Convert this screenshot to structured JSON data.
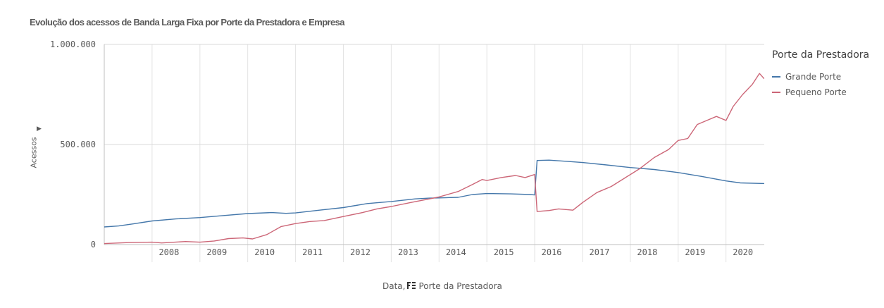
{
  "chart_data": {
    "type": "line",
    "title": "Evolução dos acessos de Banda Larga Fixa por Porte da Prestadora e Empresa",
    "xlabel_prefix": "Data,",
    "xlabel_dimension": "Porte da Prestadora",
    "ylabel": "Acessos",
    "ylim": [
      0,
      1000000
    ],
    "y_ticks": [
      {
        "value": 0,
        "label": "0"
      },
      {
        "value": 500000,
        "label": "500.000"
      },
      {
        "value": 1000000,
        "label": "1.000.000"
      }
    ],
    "xlim": [
      2007.0,
      2020.8
    ],
    "x_ticks": [
      {
        "value": 2008,
        "label": "2008"
      },
      {
        "value": 2009,
        "label": "2009"
      },
      {
        "value": 2010,
        "label": "2010"
      },
      {
        "value": 2011,
        "label": "2011"
      },
      {
        "value": 2012,
        "label": "2012"
      },
      {
        "value": 2013,
        "label": "2013"
      },
      {
        "value": 2014,
        "label": "2014"
      },
      {
        "value": 2015,
        "label": "2015"
      },
      {
        "value": 2016,
        "label": "2016"
      },
      {
        "value": 2017,
        "label": "2017"
      },
      {
        "value": 2018,
        "label": "2018"
      },
      {
        "value": 2019,
        "label": "2019"
      },
      {
        "value": 2020,
        "label": "2020"
      }
    ],
    "legend_title": "Porte da Prestadora",
    "series": [
      {
        "name": "Grande Porte",
        "color": "#4477aa",
        "points": [
          [
            2007.0,
            88000
          ],
          [
            2007.3,
            93000
          ],
          [
            2007.6,
            103000
          ],
          [
            2008.0,
            118000
          ],
          [
            2008.5,
            128000
          ],
          [
            2009.0,
            135000
          ],
          [
            2009.5,
            145000
          ],
          [
            2010.0,
            155000
          ],
          [
            2010.5,
            160000
          ],
          [
            2010.8,
            156000
          ],
          [
            2011.0,
            158000
          ],
          [
            2011.5,
            172000
          ],
          [
            2012.0,
            185000
          ],
          [
            2012.5,
            205000
          ],
          [
            2013.0,
            215000
          ],
          [
            2013.5,
            228000
          ],
          [
            2013.8,
            232000
          ],
          [
            2014.0,
            233000
          ],
          [
            2014.4,
            236000
          ],
          [
            2014.7,
            250000
          ],
          [
            2015.0,
            255000
          ],
          [
            2015.5,
            253000
          ],
          [
            2015.9,
            250000
          ],
          [
            2016.0,
            248000
          ],
          [
            2016.05,
            420000
          ],
          [
            2016.3,
            422000
          ],
          [
            2016.7,
            415000
          ],
          [
            2017.0,
            410000
          ],
          [
            2017.5,
            398000
          ],
          [
            2018.0,
            385000
          ],
          [
            2018.5,
            375000
          ],
          [
            2019.0,
            360000
          ],
          [
            2019.5,
            340000
          ],
          [
            2020.0,
            318000
          ],
          [
            2020.3,
            308000
          ],
          [
            2020.8,
            305000
          ]
        ]
      },
      {
        "name": "Pequeno Porte",
        "color": "#cc6677",
        "points": [
          [
            2007.0,
            5000
          ],
          [
            2007.5,
            10000
          ],
          [
            2008.0,
            12000
          ],
          [
            2008.2,
            8000
          ],
          [
            2008.7,
            15000
          ],
          [
            2009.0,
            12000
          ],
          [
            2009.3,
            18000
          ],
          [
            2009.6,
            30000
          ],
          [
            2009.9,
            33000
          ],
          [
            2010.1,
            28000
          ],
          [
            2010.4,
            50000
          ],
          [
            2010.7,
            90000
          ],
          [
            2011.0,
            105000
          ],
          [
            2011.3,
            115000
          ],
          [
            2011.6,
            120000
          ],
          [
            2012.0,
            140000
          ],
          [
            2012.4,
            160000
          ],
          [
            2012.7,
            178000
          ],
          [
            2013.0,
            190000
          ],
          [
            2013.4,
            210000
          ],
          [
            2013.8,
            228000
          ],
          [
            2014.0,
            238000
          ],
          [
            2014.4,
            265000
          ],
          [
            2014.7,
            300000
          ],
          [
            2014.9,
            325000
          ],
          [
            2015.0,
            320000
          ],
          [
            2015.3,
            335000
          ],
          [
            2015.6,
            345000
          ],
          [
            2015.8,
            335000
          ],
          [
            2016.0,
            350000
          ],
          [
            2016.05,
            165000
          ],
          [
            2016.3,
            170000
          ],
          [
            2016.5,
            178000
          ],
          [
            2016.8,
            172000
          ],
          [
            2017.0,
            210000
          ],
          [
            2017.3,
            260000
          ],
          [
            2017.6,
            290000
          ],
          [
            2017.9,
            335000
          ],
          [
            2018.2,
            380000
          ],
          [
            2018.5,
            435000
          ],
          [
            2018.8,
            475000
          ],
          [
            2019.0,
            520000
          ],
          [
            2019.2,
            530000
          ],
          [
            2019.4,
            600000
          ],
          [
            2019.6,
            620000
          ],
          [
            2019.8,
            640000
          ],
          [
            2020.0,
            620000
          ],
          [
            2020.15,
            690000
          ],
          [
            2020.35,
            750000
          ],
          [
            2020.55,
            800000
          ],
          [
            2020.7,
            855000
          ],
          [
            2020.8,
            828000
          ]
        ]
      }
    ]
  }
}
